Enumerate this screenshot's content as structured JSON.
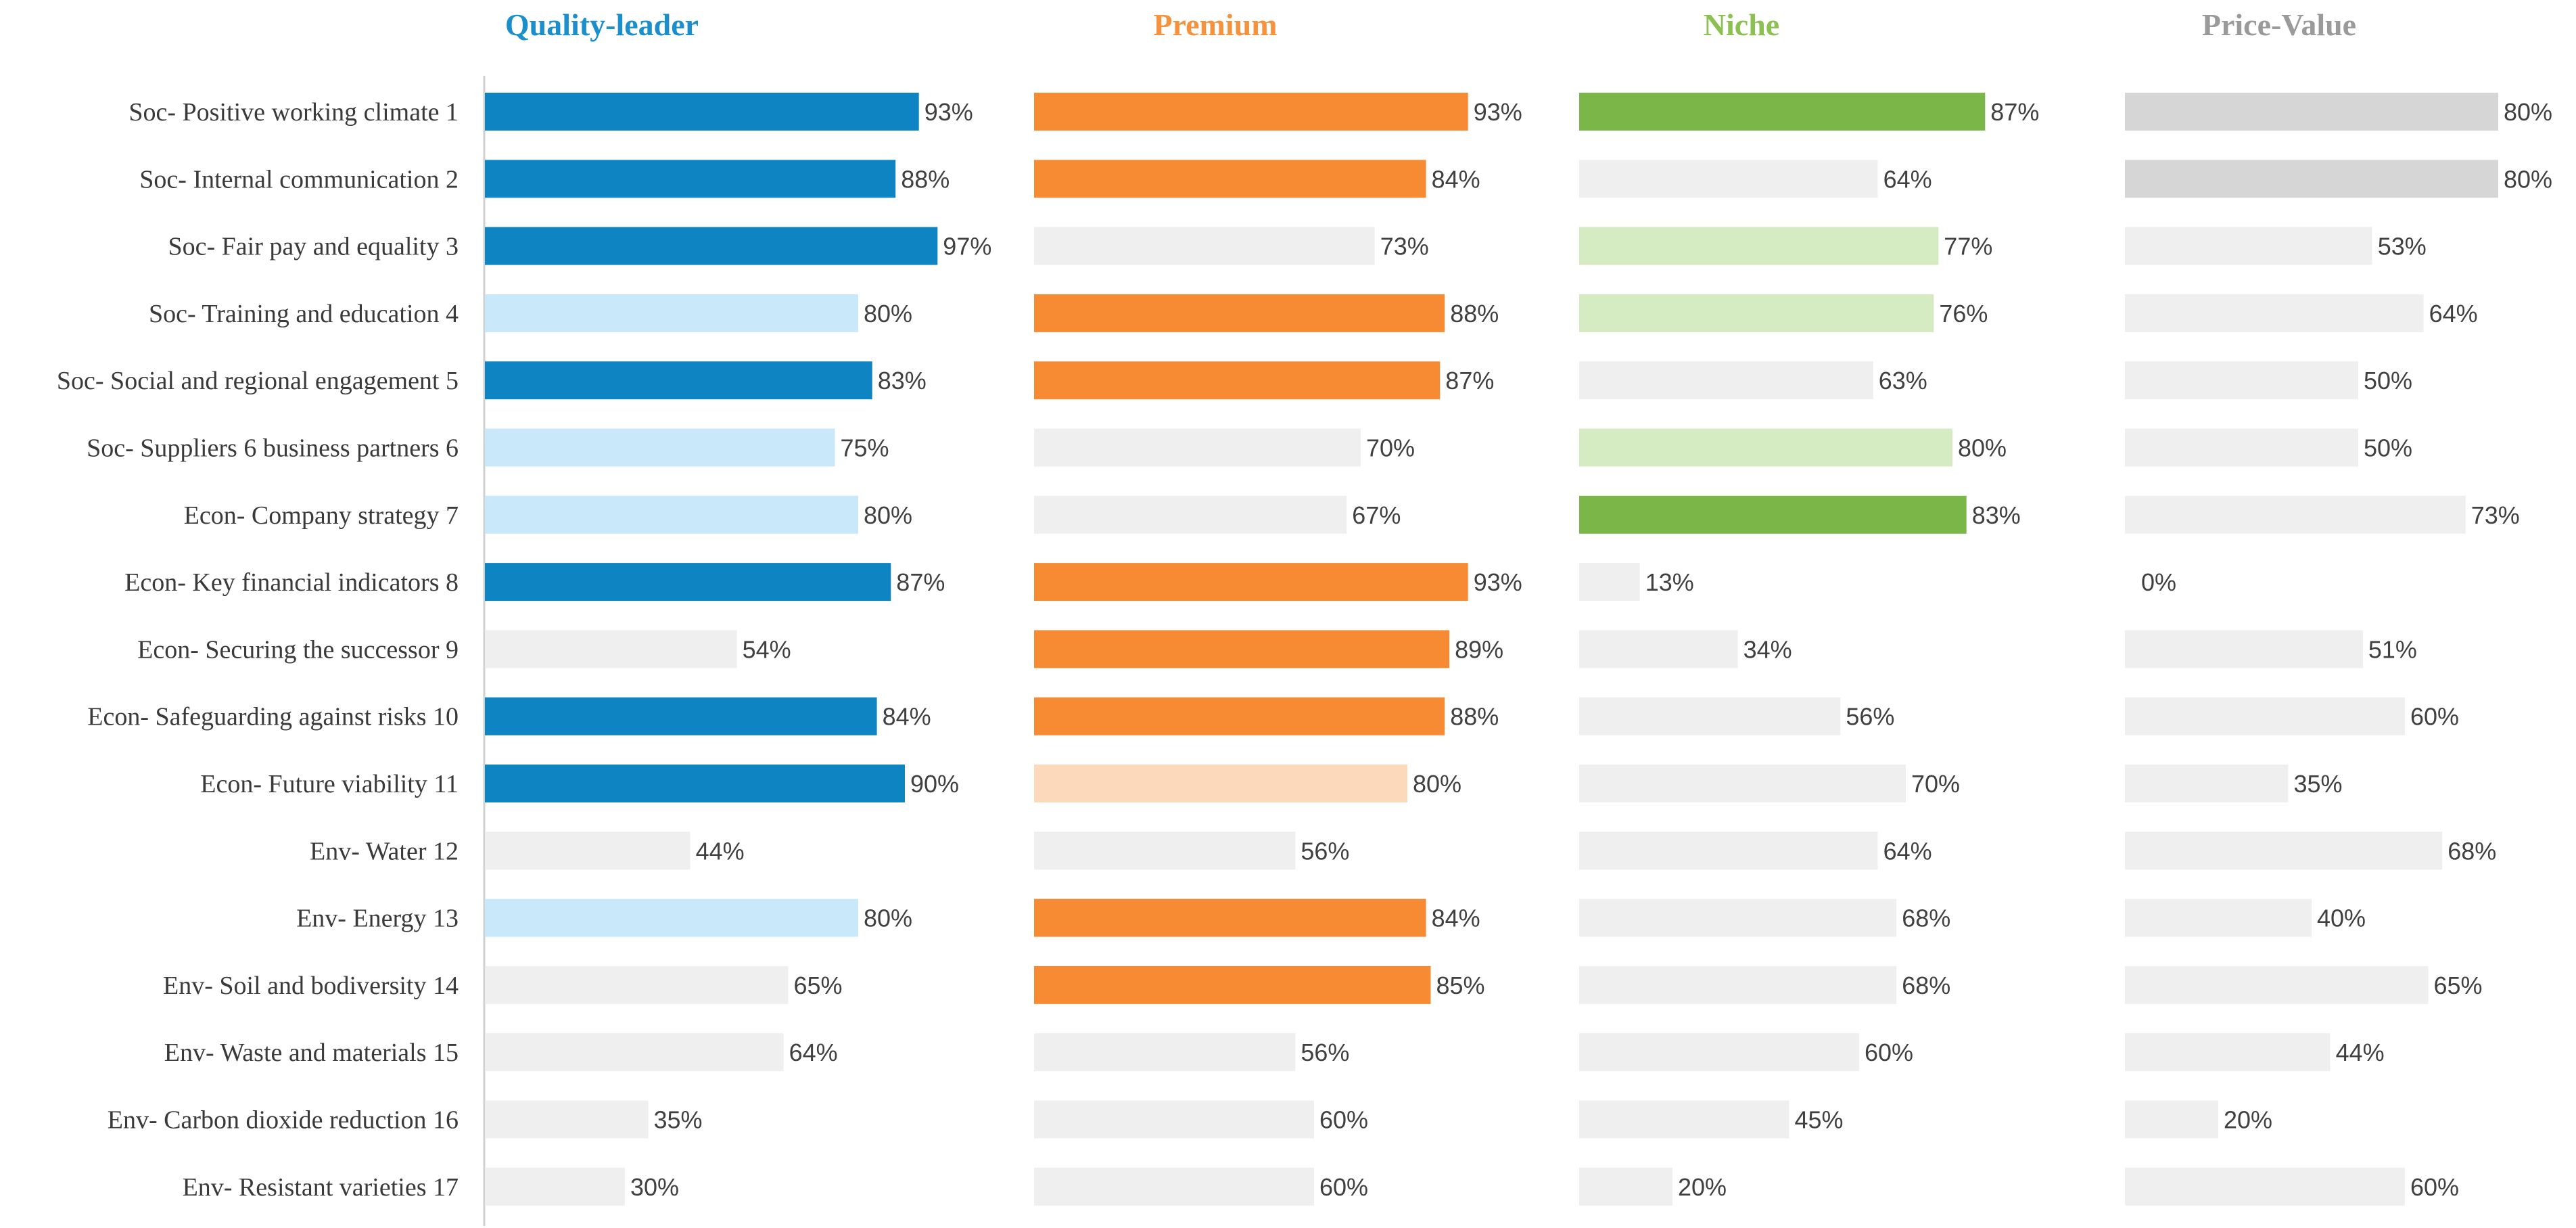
{
  "chart_data": {
    "type": "bar",
    "orientation": "horizontal",
    "value_unit": "%",
    "xlim": [
      0,
      100
    ],
    "categories": [
      "Soc- Positive working climate 1",
      "Soc- Internal communication 2",
      "Soc- Fair pay and equality 3",
      "Soc- Training and education 4",
      "Soc- Social and regional engagement 5",
      "Soc- Suppliers 6 business partners 6",
      "Econ- Company strategy 7",
      "Econ- Key financial indicators 8",
      "Econ- Securing the successor 9",
      "Econ- Safeguarding against risks 10",
      "Econ- Future viability 11",
      "Env- Water 12",
      "Env- Energy 13",
      "Env- Soil and bodiversity 14",
      "Env- Waste and materials 15",
      "Env- Carbon dioxide reduction 16",
      "Env- Resistant varieties 17"
    ],
    "series": [
      {
        "name": "Quality-leader",
        "title_color": "#1B8FCB",
        "values": [
          93,
          88,
          97,
          80,
          83,
          75,
          80,
          87,
          54,
          84,
          90,
          44,
          80,
          65,
          64,
          35,
          30
        ],
        "value_labels": [
          "93%",
          "88%",
          "97%",
          "80%",
          "83%",
          "75%",
          "80%",
          "87%",
          "54%",
          "84%",
          "90%",
          "44%",
          "80%",
          "65%",
          "64%",
          "35%",
          "30%"
        ],
        "levels": [
          "high",
          "high",
          "high",
          "mid",
          "high",
          "mid",
          "mid",
          "high",
          "low",
          "high",
          "high",
          "low",
          "mid",
          "low",
          "low",
          "low",
          "low"
        ],
        "level_colors": {
          "high": "#0E84C3",
          "mid": "#C9E8F9",
          "low": "#EFEFEF"
        }
      },
      {
        "name": "Premium",
        "title_color": "#F5923E",
        "values": [
          93,
          84,
          73,
          88,
          87,
          70,
          67,
          93,
          89,
          88,
          80,
          56,
          84,
          85,
          56,
          60,
          60
        ],
        "value_labels": [
          "93%",
          "84%",
          "73%",
          "88%",
          "87%",
          "70%",
          "67%",
          "93%",
          "89%",
          "88%",
          "80%",
          "56%",
          "84%",
          "85%",
          "56%",
          "60%",
          "60%"
        ],
        "levels": [
          "high",
          "high",
          "low",
          "high",
          "high",
          "low",
          "low",
          "high",
          "high",
          "high",
          "mid",
          "low",
          "high",
          "high",
          "low",
          "low",
          "low"
        ],
        "level_colors": {
          "high": "#F68B33",
          "mid": "#FDD9BC",
          "low": "#EFEFEF"
        }
      },
      {
        "name": "Niche",
        "title_color": "#8CC152",
        "values": [
          87,
          64,
          77,
          76,
          63,
          80,
          83,
          13,
          34,
          56,
          70,
          64,
          68,
          68,
          60,
          45,
          20
        ],
        "value_labels": [
          "87%",
          "64%",
          "77%",
          "76%",
          "63%",
          "80%",
          "83%",
          "13%",
          "34%",
          "56%",
          "70%",
          "64%",
          "68%",
          "68%",
          "60%",
          "45%",
          "20%"
        ],
        "levels": [
          "high",
          "low",
          "mid",
          "mid",
          "low",
          "mid",
          "high",
          "low",
          "low",
          "low",
          "low",
          "low",
          "low",
          "low",
          "low",
          "low",
          "low"
        ],
        "level_colors": {
          "high": "#7AB648",
          "mid": "#D5EBC2",
          "low": "#EFEFEF"
        }
      },
      {
        "name": "Price-Value",
        "title_color": "#9A9A9A",
        "values": [
          80,
          80,
          53,
          64,
          50,
          50,
          73,
          0,
          51,
          60,
          35,
          68,
          40,
          65,
          44,
          20,
          60
        ],
        "value_labels": [
          "80%",
          "80%",
          "53%",
          "64%",
          "50%",
          "50%",
          "73%",
          "0%",
          "51%",
          "60%",
          "35%",
          "68%",
          "40%",
          "65%",
          "44%",
          "20%",
          "60%"
        ],
        "levels": [
          "high",
          "high",
          "low",
          "low",
          "low",
          "low",
          "low",
          "low",
          "low",
          "low",
          "low",
          "low",
          "low",
          "low",
          "low",
          "low",
          "low"
        ],
        "level_colors": {
          "high": "#D6D6D6",
          "mid": "#E4E4E4",
          "low": "#EFEFEF"
        }
      }
    ]
  }
}
